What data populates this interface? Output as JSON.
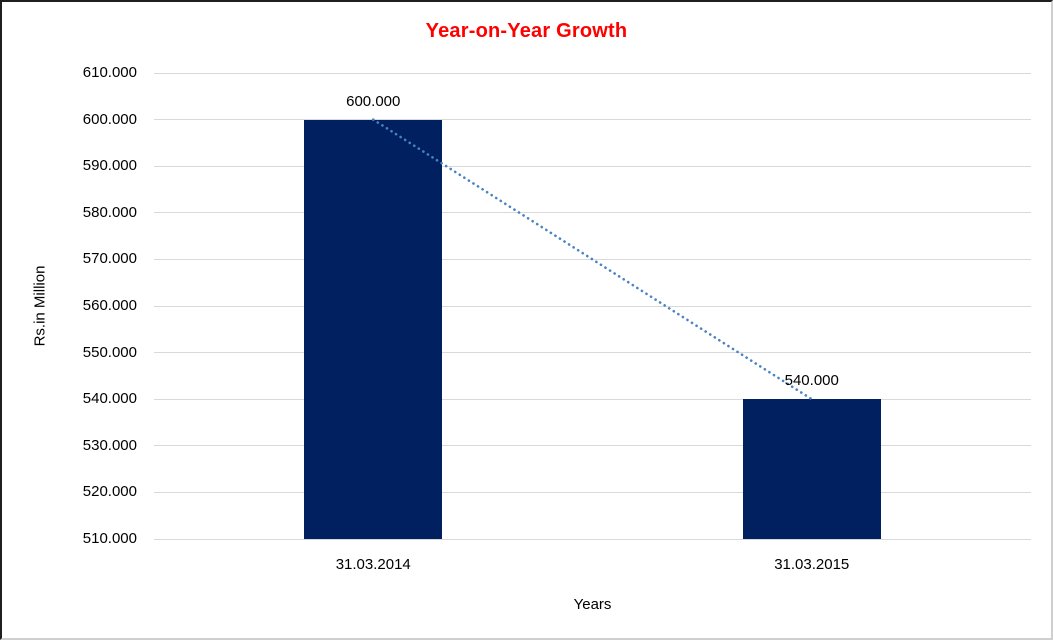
{
  "chart_data": {
    "type": "bar",
    "title": "Year-on-Year Growth",
    "categories": [
      "31.03.2014",
      "31.03.2015"
    ],
    "values": [
      600,
      540
    ],
    "data_labels": [
      "600.000",
      "540.000"
    ],
    "xlabel": "Years",
    "ylabel": "Rs.in Million",
    "ylim": [
      510,
      610
    ],
    "ytick_step": 10,
    "ytick_labels": [
      "510.000",
      "520.000",
      "530.000",
      "540.000",
      "550.000",
      "560.000",
      "570.000",
      "580.000",
      "590.000",
      "600.000",
      "610.000"
    ],
    "grid": true,
    "legend": "none",
    "trendline": {
      "type": "linear",
      "style": "dotted",
      "from_value": 600,
      "to_value": 540
    },
    "colors": {
      "bar": "#002060",
      "title": "#ff0000",
      "gridline": "#d9d9d9",
      "axis_text": "#000000",
      "trendline": "#4a82c4",
      "background": "#ffffff"
    }
  }
}
